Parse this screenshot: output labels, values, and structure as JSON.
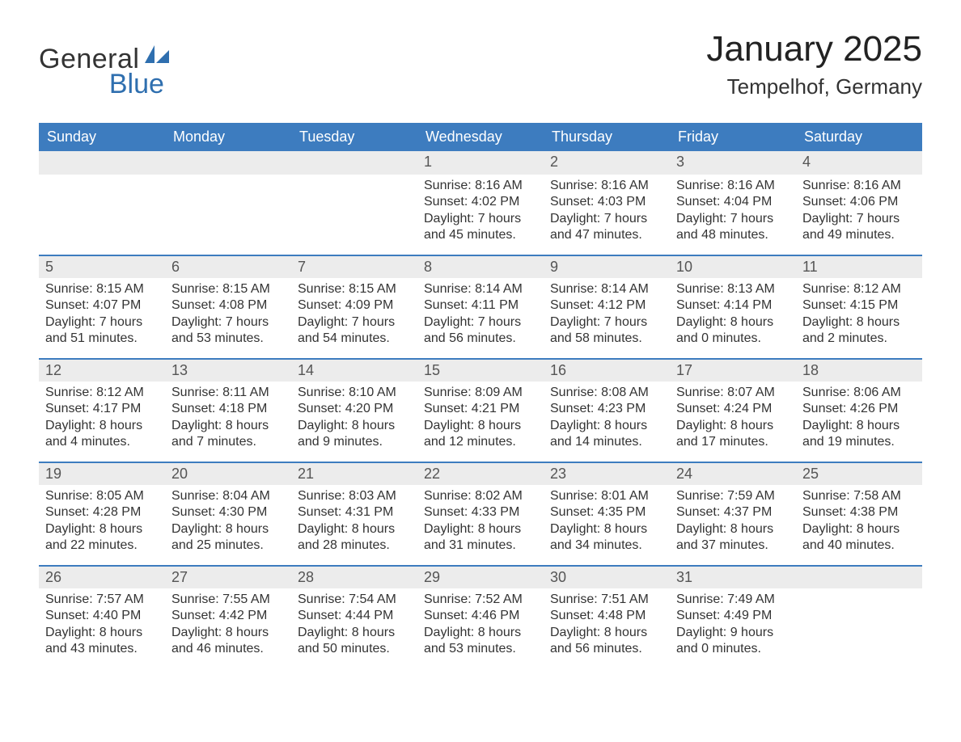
{
  "colors": {
    "header_bg": "#3d7cbf",
    "row_bg": "#ececec",
    "row_border": "#3d7cbf",
    "logo_blue": "#2f6faf",
    "text": "#333333",
    "background": "#ffffff"
  },
  "typography": {
    "title_fontsize": 44,
    "subtitle_fontsize": 26,
    "header_fontsize": 18,
    "daynum_fontsize": 18,
    "detail_fontsize": 16,
    "font_family": "Arial"
  },
  "logo": {
    "general": "General",
    "blue": "Blue"
  },
  "title": "January 2025",
  "subtitle": "Tempelhof, Germany",
  "day_headers": [
    "Sunday",
    "Monday",
    "Tuesday",
    "Wednesday",
    "Thursday",
    "Friday",
    "Saturday"
  ],
  "calendar": {
    "leading_blanks": 3,
    "trailing_blanks": 1,
    "days": [
      {
        "n": 1,
        "sunrise": "8:16 AM",
        "sunset": "4:02 PM",
        "dl_h": 7,
        "dl_m": 45
      },
      {
        "n": 2,
        "sunrise": "8:16 AM",
        "sunset": "4:03 PM",
        "dl_h": 7,
        "dl_m": 47
      },
      {
        "n": 3,
        "sunrise": "8:16 AM",
        "sunset": "4:04 PM",
        "dl_h": 7,
        "dl_m": 48
      },
      {
        "n": 4,
        "sunrise": "8:16 AM",
        "sunset": "4:06 PM",
        "dl_h": 7,
        "dl_m": 49
      },
      {
        "n": 5,
        "sunrise": "8:15 AM",
        "sunset": "4:07 PM",
        "dl_h": 7,
        "dl_m": 51
      },
      {
        "n": 6,
        "sunrise": "8:15 AM",
        "sunset": "4:08 PM",
        "dl_h": 7,
        "dl_m": 53
      },
      {
        "n": 7,
        "sunrise": "8:15 AM",
        "sunset": "4:09 PM",
        "dl_h": 7,
        "dl_m": 54
      },
      {
        "n": 8,
        "sunrise": "8:14 AM",
        "sunset": "4:11 PM",
        "dl_h": 7,
        "dl_m": 56
      },
      {
        "n": 9,
        "sunrise": "8:14 AM",
        "sunset": "4:12 PM",
        "dl_h": 7,
        "dl_m": 58
      },
      {
        "n": 10,
        "sunrise": "8:13 AM",
        "sunset": "4:14 PM",
        "dl_h": 8,
        "dl_m": 0
      },
      {
        "n": 11,
        "sunrise": "8:12 AM",
        "sunset": "4:15 PM",
        "dl_h": 8,
        "dl_m": 2
      },
      {
        "n": 12,
        "sunrise": "8:12 AM",
        "sunset": "4:17 PM",
        "dl_h": 8,
        "dl_m": 4
      },
      {
        "n": 13,
        "sunrise": "8:11 AM",
        "sunset": "4:18 PM",
        "dl_h": 8,
        "dl_m": 7
      },
      {
        "n": 14,
        "sunrise": "8:10 AM",
        "sunset": "4:20 PM",
        "dl_h": 8,
        "dl_m": 9
      },
      {
        "n": 15,
        "sunrise": "8:09 AM",
        "sunset": "4:21 PM",
        "dl_h": 8,
        "dl_m": 12
      },
      {
        "n": 16,
        "sunrise": "8:08 AM",
        "sunset": "4:23 PM",
        "dl_h": 8,
        "dl_m": 14
      },
      {
        "n": 17,
        "sunrise": "8:07 AM",
        "sunset": "4:24 PM",
        "dl_h": 8,
        "dl_m": 17
      },
      {
        "n": 18,
        "sunrise": "8:06 AM",
        "sunset": "4:26 PM",
        "dl_h": 8,
        "dl_m": 19
      },
      {
        "n": 19,
        "sunrise": "8:05 AM",
        "sunset": "4:28 PM",
        "dl_h": 8,
        "dl_m": 22
      },
      {
        "n": 20,
        "sunrise": "8:04 AM",
        "sunset": "4:30 PM",
        "dl_h": 8,
        "dl_m": 25
      },
      {
        "n": 21,
        "sunrise": "8:03 AM",
        "sunset": "4:31 PM",
        "dl_h": 8,
        "dl_m": 28
      },
      {
        "n": 22,
        "sunrise": "8:02 AM",
        "sunset": "4:33 PM",
        "dl_h": 8,
        "dl_m": 31
      },
      {
        "n": 23,
        "sunrise": "8:01 AM",
        "sunset": "4:35 PM",
        "dl_h": 8,
        "dl_m": 34
      },
      {
        "n": 24,
        "sunrise": "7:59 AM",
        "sunset": "4:37 PM",
        "dl_h": 8,
        "dl_m": 37
      },
      {
        "n": 25,
        "sunrise": "7:58 AM",
        "sunset": "4:38 PM",
        "dl_h": 8,
        "dl_m": 40
      },
      {
        "n": 26,
        "sunrise": "7:57 AM",
        "sunset": "4:40 PM",
        "dl_h": 8,
        "dl_m": 43
      },
      {
        "n": 27,
        "sunrise": "7:55 AM",
        "sunset": "4:42 PM",
        "dl_h": 8,
        "dl_m": 46
      },
      {
        "n": 28,
        "sunrise": "7:54 AM",
        "sunset": "4:44 PM",
        "dl_h": 8,
        "dl_m": 50
      },
      {
        "n": 29,
        "sunrise": "7:52 AM",
        "sunset": "4:46 PM",
        "dl_h": 8,
        "dl_m": 53
      },
      {
        "n": 30,
        "sunrise": "7:51 AM",
        "sunset": "4:48 PM",
        "dl_h": 8,
        "dl_m": 56
      },
      {
        "n": 31,
        "sunrise": "7:49 AM",
        "sunset": "4:49 PM",
        "dl_h": 9,
        "dl_m": 0
      }
    ]
  },
  "labels": {
    "sunrise": "Sunrise:",
    "sunset": "Sunset:",
    "daylight_prefix": "Daylight:",
    "hours_word": "hours",
    "and_word": "and",
    "minutes_word": "minutes."
  }
}
